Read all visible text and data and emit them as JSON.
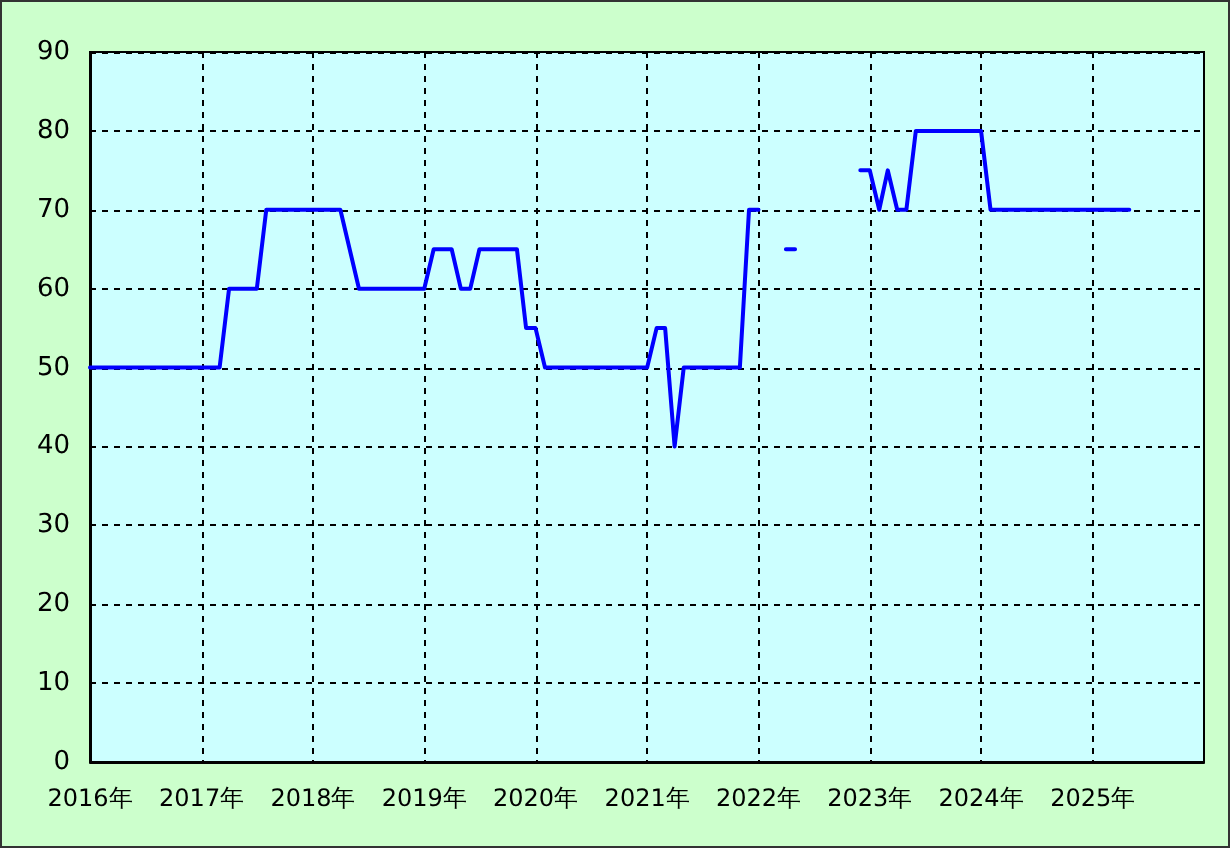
{
  "chart_data": {
    "type": "line",
    "x": [
      "2016-01",
      "2017-03",
      "2017-04",
      "2017-07",
      "2017-08",
      "2018-04",
      "2018-06",
      "2019-01",
      "2019-02",
      "2019-04",
      "2019-05",
      "2019-06",
      "2019-07",
      "2019-11",
      "2019-12",
      "2020-01",
      "2020-02",
      "2021-01",
      "2021-02",
      "2021-03",
      "2021-04",
      "2021-05",
      "2021-11",
      "2021-12",
      "2022-01",
      "2022-02",
      "2022-04",
      "2022-05",
      "2022-06",
      "2022-12",
      "2023-01",
      "2023-02",
      "2023-03",
      "2023-04",
      "2023-05",
      "2023-06",
      "2024-01",
      "2024-02",
      "2025-05"
    ],
    "series": [
      {
        "color": "#0000ff",
        "values": [
          50,
          50,
          60,
          60,
          70,
          70,
          60,
          60,
          65,
          65,
          60,
          60,
          65,
          65,
          55,
          55,
          50,
          50,
          55,
          55,
          40,
          50,
          50,
          70,
          70,
          null,
          65,
          65,
          null,
          75,
          75,
          70,
          75,
          70,
          70,
          80,
          80,
          70,
          70
        ]
      }
    ],
    "xlim": [
      "2016-01",
      "2026-01"
    ],
    "xticks": [
      {
        "value": "2016",
        "label": "2016年"
      },
      {
        "value": "2017",
        "label": "2017年"
      },
      {
        "value": "2018",
        "label": "2018年"
      },
      {
        "value": "2019",
        "label": "2019年"
      },
      {
        "value": "2020",
        "label": "2020年"
      },
      {
        "value": "2021",
        "label": "2021年"
      },
      {
        "value": "2022",
        "label": "2022年"
      },
      {
        "value": "2023",
        "label": "2023年"
      },
      {
        "value": "2024",
        "label": "2024年"
      },
      {
        "value": "2025",
        "label": "2025年"
      }
    ],
    "ylim": [
      0,
      90
    ],
    "yticks": [
      0,
      10,
      20,
      30,
      40,
      50,
      60,
      70,
      80,
      90
    ],
    "grid": true,
    "marker": "none",
    "line_style": "solid"
  }
}
